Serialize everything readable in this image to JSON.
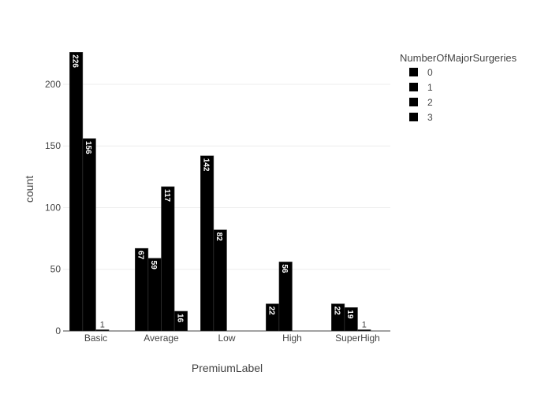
{
  "chart_data": {
    "type": "bar",
    "xlabel": "PremiumLabel",
    "ylabel": "count",
    "categories": [
      "Basic",
      "Average",
      "Low",
      "High",
      "SuperHigh"
    ],
    "legend_title": "NumberOfMajorSurgeries",
    "legend_position": "top-right",
    "ylim": [
      0,
      230
    ],
    "yticks": [
      0,
      50,
      100,
      150,
      200
    ],
    "grid": true,
    "series": [
      {
        "name": "0",
        "color": "#000000",
        "values": [
          226,
          67,
          142,
          22,
          22
        ]
      },
      {
        "name": "1",
        "color": "#000000",
        "values": [
          156,
          59,
          82,
          56,
          19
        ]
      },
      {
        "name": "2",
        "color": "#000000",
        "values": [
          1,
          117,
          null,
          null,
          1
        ]
      },
      {
        "name": "3",
        "color": "#000000",
        "values": [
          null,
          16,
          null,
          null,
          null
        ]
      }
    ]
  }
}
